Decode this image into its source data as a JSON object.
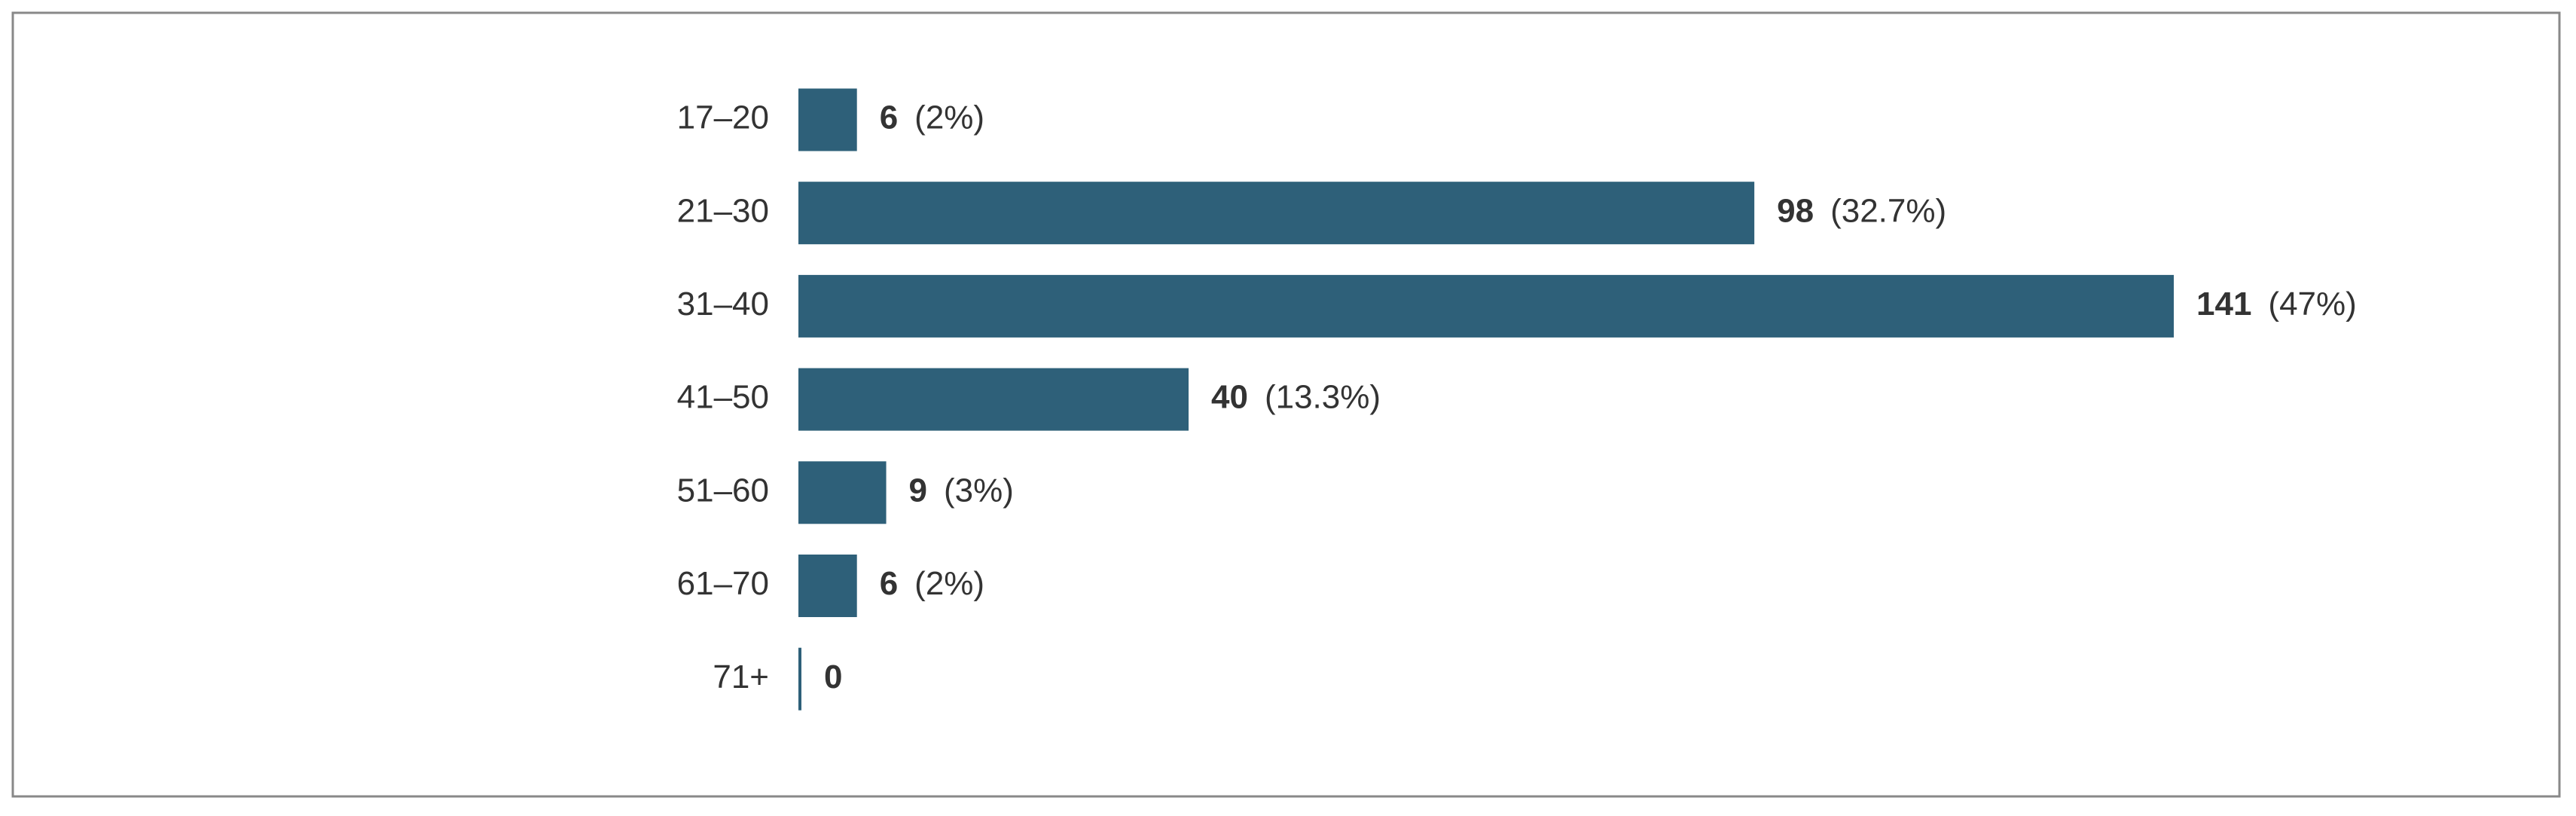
{
  "chart_data": {
    "type": "bar",
    "orientation": "horizontal",
    "categories": [
      "17–20",
      "21–30",
      "31–40",
      "41–50",
      "51–60",
      "61–70",
      "71+"
    ],
    "values": [
      6,
      98,
      141,
      40,
      9,
      6,
      0
    ],
    "share_labels": [
      "(2%)",
      "(32.7%)",
      "(47%)",
      "(13.3%)",
      "(3%)",
      "(2%)",
      null
    ],
    "color": "#2e6079"
  }
}
